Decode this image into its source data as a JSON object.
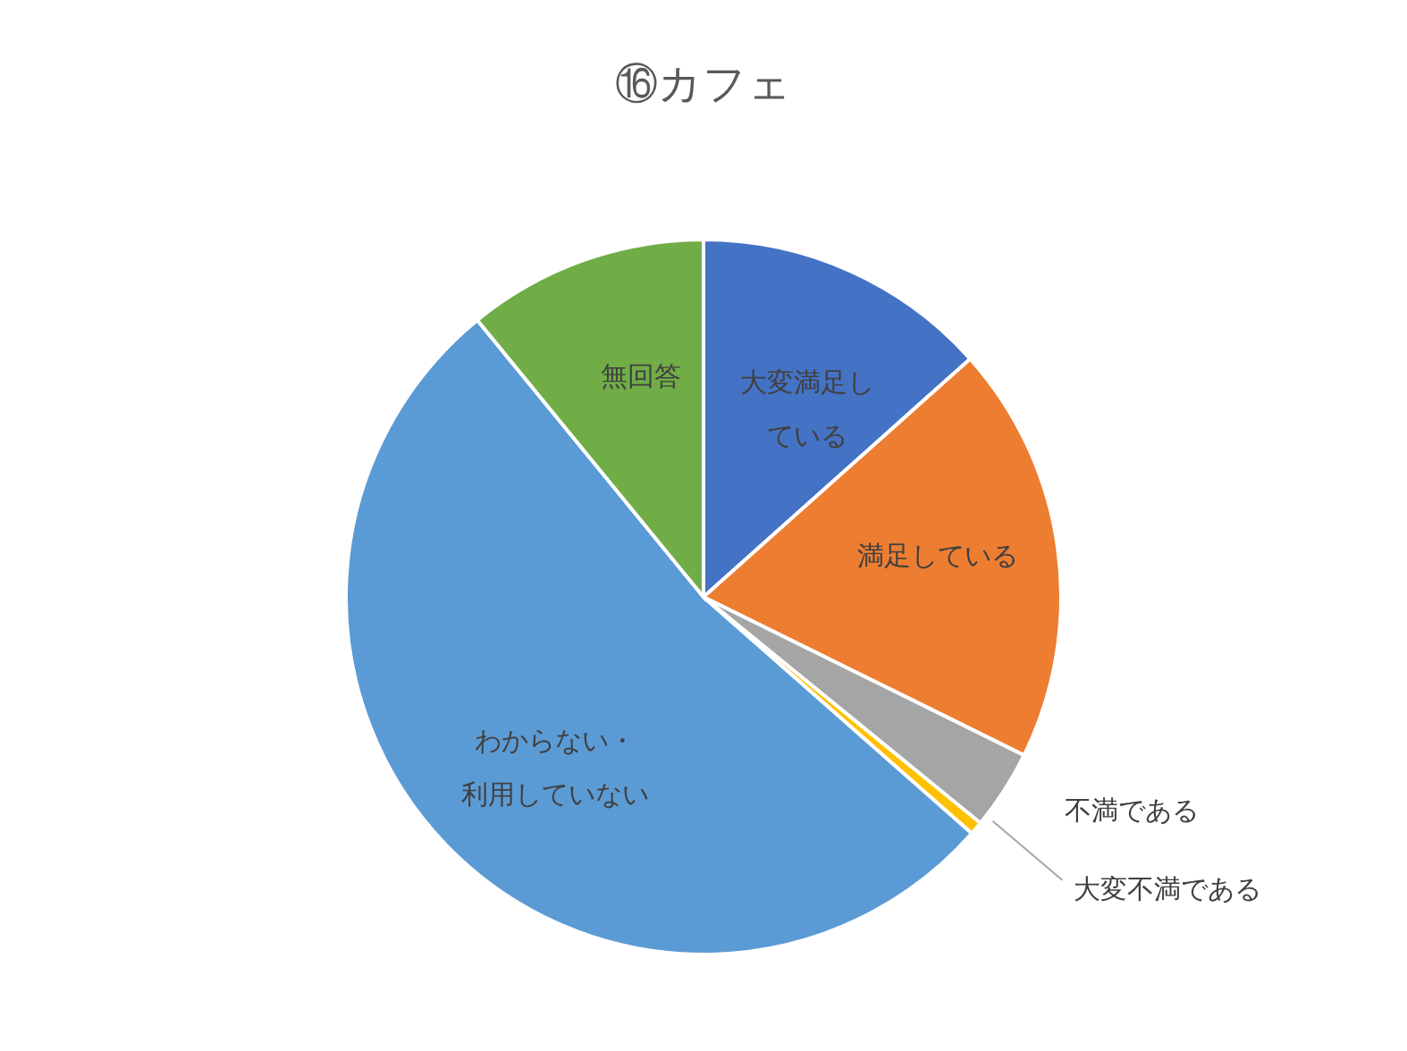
{
  "chart_data": {
    "type": "pie",
    "title": "⑯カフェ",
    "categories": [
      "大変満足している",
      "満足している",
      "不満である",
      "大変不満である",
      "わからない・利用していない",
      "無回答"
    ],
    "values": [
      13.4,
      18.9,
      3.6,
      0.6,
      52.6,
      10.9
    ],
    "colors": [
      "#4472c4",
      "#ed7d31",
      "#a5a5a5",
      "#ffc000",
      "#5b9bd5",
      "#70ad47"
    ]
  }
}
